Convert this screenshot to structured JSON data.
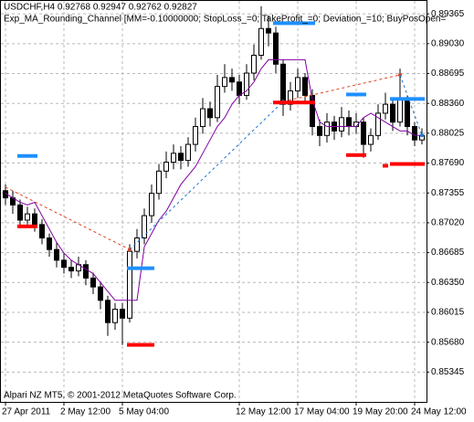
{
  "chart_data": {
    "type": "candlestick",
    "title": "USDCHF,H4  0.92768 0.92947 0.92762 0.92827",
    "subtitle": "Exp_MA_Rounding_Channel [MM=-0.10000000; StopLoss_=0; TakeProfit_=0; Deviation_=10; BuyPosOpen=",
    "footer": "Alpari NZ MT5, © 2001-2012 MetaQuotes Software Corp.",
    "ylim": [
      0.8501,
      0.8951
    ],
    "yticks": [
      0.89365,
      {
        "value": 0.8903,
        "label": "0.89030"
      },
      0.88695,
      {
        "value": 0.8836,
        "label": "0.88360"
      },
      0.88025,
      {
        "value": 0.8769,
        "label": "0.87690"
      },
      0.87355,
      {
        "value": 0.8702,
        "label": "0.87020"
      },
      0.86685,
      {
        "value": 0.8635,
        "label": "0.86350"
      },
      0.86015,
      {
        "value": 0.8568,
        "label": "0.85680"
      },
      0.85345
    ],
    "xticks": [
      {
        "value": 0,
        "label": "27 Apr 2011"
      },
      {
        "value": 8,
        "label": "2 May 12:00"
      },
      {
        "value": 16,
        "label": "5 May 04:00"
      },
      {
        "value": 32,
        "label": "12 May 12:00"
      },
      {
        "value": 40,
        "label": "17 May 04:00"
      },
      {
        "value": 48,
        "label": "19 May 20:00"
      },
      {
        "value": 56,
        "label": "24 May 12:00"
      }
    ],
    "grid": true,
    "ohlc": [
      [
        0.8738,
        0.8745,
        0.8722,
        0.873
      ],
      [
        0.873,
        0.8738,
        0.8712,
        0.8722
      ],
      [
        0.8722,
        0.8728,
        0.8698,
        0.8705
      ],
      [
        0.8705,
        0.872,
        0.87,
        0.8712
      ],
      [
        0.8712,
        0.8718,
        0.8692,
        0.87
      ],
      [
        0.87,
        0.8706,
        0.8678,
        0.8685
      ],
      [
        0.8685,
        0.869,
        0.8664,
        0.8672
      ],
      [
        0.8672,
        0.868,
        0.8652,
        0.866
      ],
      [
        0.866,
        0.8668,
        0.8645,
        0.8652
      ],
      [
        0.8652,
        0.866,
        0.864,
        0.8648
      ],
      [
        0.8648,
        0.8664,
        0.8642,
        0.8655
      ],
      [
        0.8655,
        0.866,
        0.8632,
        0.864
      ],
      [
        0.864,
        0.8646,
        0.8622,
        0.863
      ],
      [
        0.863,
        0.8636,
        0.8605,
        0.8615
      ],
      [
        0.8615,
        0.862,
        0.8575,
        0.859
      ],
      [
        0.859,
        0.8612,
        0.8582,
        0.8605
      ],
      [
        0.8605,
        0.8612,
        0.8565,
        0.8595
      ],
      [
        0.8595,
        0.8678,
        0.859,
        0.867
      ],
      [
        0.867,
        0.8695,
        0.8662,
        0.8685
      ],
      [
        0.8685,
        0.8718,
        0.8678,
        0.871
      ],
      [
        0.871,
        0.8745,
        0.8702,
        0.8735
      ],
      [
        0.8735,
        0.8768,
        0.8728,
        0.876
      ],
      [
        0.876,
        0.8782,
        0.8752,
        0.877
      ],
      [
        0.877,
        0.879,
        0.8762,
        0.878
      ],
      [
        0.878,
        0.8788,
        0.8762,
        0.8772
      ],
      [
        0.8772,
        0.8798,
        0.8765,
        0.879
      ],
      [
        0.879,
        0.882,
        0.8782,
        0.881
      ],
      [
        0.881,
        0.8842,
        0.8802,
        0.883
      ],
      [
        0.883,
        0.8838,
        0.881,
        0.882
      ],
      [
        0.882,
        0.8868,
        0.8815,
        0.8855
      ],
      [
        0.8855,
        0.888,
        0.8848,
        0.8865
      ],
      [
        0.8865,
        0.8875,
        0.885,
        0.886
      ],
      [
        0.886,
        0.8868,
        0.8835,
        0.8845
      ],
      [
        0.8845,
        0.888,
        0.884,
        0.887
      ],
      [
        0.887,
        0.8902,
        0.8862,
        0.889
      ],
      [
        0.889,
        0.8945,
        0.8885,
        0.892
      ],
      [
        0.892,
        0.8935,
        0.89,
        0.8915
      ],
      [
        0.8915,
        0.8922,
        0.887,
        0.888
      ],
      [
        0.888,
        0.8885,
        0.8822,
        0.8835
      ],
      [
        0.8835,
        0.886,
        0.8828,
        0.885
      ],
      [
        0.885,
        0.8875,
        0.8842,
        0.8865
      ],
      [
        0.8865,
        0.887,
        0.8835,
        0.8845
      ],
      [
        0.8845,
        0.8852,
        0.88,
        0.881
      ],
      [
        0.881,
        0.8818,
        0.8788,
        0.88
      ],
      [
        0.88,
        0.8825,
        0.8792,
        0.8815
      ],
      [
        0.8815,
        0.8822,
        0.8795,
        0.8805
      ],
      [
        0.8805,
        0.8832,
        0.8798,
        0.882
      ],
      [
        0.882,
        0.8828,
        0.88,
        0.881
      ],
      [
        0.881,
        0.8825,
        0.8802,
        0.8815
      ],
      [
        0.8815,
        0.882,
        0.8775,
        0.879
      ],
      [
        0.879,
        0.8808,
        0.8782,
        0.88
      ],
      [
        0.88,
        0.8835,
        0.8795,
        0.8825
      ],
      [
        0.8825,
        0.8848,
        0.8818,
        0.8835
      ],
      [
        0.8835,
        0.884,
        0.8805,
        0.8815
      ],
      [
        0.8815,
        0.8875,
        0.881,
        0.884
      ],
      [
        0.884,
        0.8845,
        0.88,
        0.881
      ],
      [
        0.881,
        0.8815,
        0.8788,
        0.8795
      ],
      [
        0.8795,
        0.8808,
        0.879,
        0.88
      ]
    ],
    "ma": {
      "color": "#8000a0",
      "values": [
        0.8735,
        0.873,
        0.8725,
        0.8722,
        0.8725,
        0.871,
        0.8695,
        0.868,
        0.8668,
        0.866,
        0.8655,
        0.865,
        0.8645,
        0.8635,
        0.8625,
        0.8615,
        0.8615,
        0.8615,
        0.8615,
        0.8675,
        0.869,
        0.8705,
        0.8715,
        0.873,
        0.8745,
        0.8755,
        0.8765,
        0.878,
        0.8795,
        0.881,
        0.882,
        0.8835,
        0.8845,
        0.885,
        0.886,
        0.8875,
        0.8885,
        0.8885,
        0.8885,
        0.8885,
        0.8885,
        0.8885,
        0.884,
        0.8815,
        0.881,
        0.881,
        0.881,
        0.881,
        0.881,
        0.882,
        0.8825,
        0.882,
        0.8815,
        0.881,
        0.8805,
        0.8805,
        0.88,
        0.88
      ]
    },
    "levels": [
      {
        "color": "#1e90ff",
        "from": 2,
        "to": 4,
        "value": 0.8777
      },
      {
        "color": "#1e90ff",
        "from": 17,
        "to": 20,
        "value": 0.8651
      },
      {
        "color": "#1e90ff",
        "from": 37,
        "to": 42,
        "value": 0.8926
      },
      {
        "color": "#1e90ff",
        "from": 47,
        "to": 49,
        "value": 0.8846
      },
      {
        "color": "#1e90ff",
        "from": 53,
        "to": 57,
        "value": 0.8841
      },
      {
        "color": "#ff0000",
        "from": 2,
        "to": 4,
        "value": 0.8698
      },
      {
        "color": "#ff0000",
        "from": 17,
        "to": 20,
        "value": 0.8565
      },
      {
        "color": "#ff0000",
        "from": 37,
        "to": 42,
        "value": 0.8837
      },
      {
        "color": "#ff0000",
        "from": 47,
        "to": 49,
        "value": 0.8778
      },
      {
        "color": "#ff0000",
        "from": 52,
        "to": 52,
        "value": 0.8766
      },
      {
        "color": "#ff0000",
        "from": 53,
        "to": 57,
        "value": 0.8768
      }
    ],
    "trades": [
      {
        "color": "#e04020",
        "from": [
          0,
          0.8742
        ],
        "to": [
          17,
          0.8672
        ]
      },
      {
        "color": "#1e78d0",
        "from": [
          17,
          0.8672
        ],
        "to": [
          38,
          0.8838
        ]
      },
      {
        "color": "#e04020",
        "from": [
          38,
          0.8838
        ],
        "to": [
          54,
          0.8868
        ]
      },
      {
        "color": "#1e78d0",
        "from": [
          54,
          0.8868
        ],
        "to": [
          57,
          0.88
        ]
      }
    ]
  }
}
